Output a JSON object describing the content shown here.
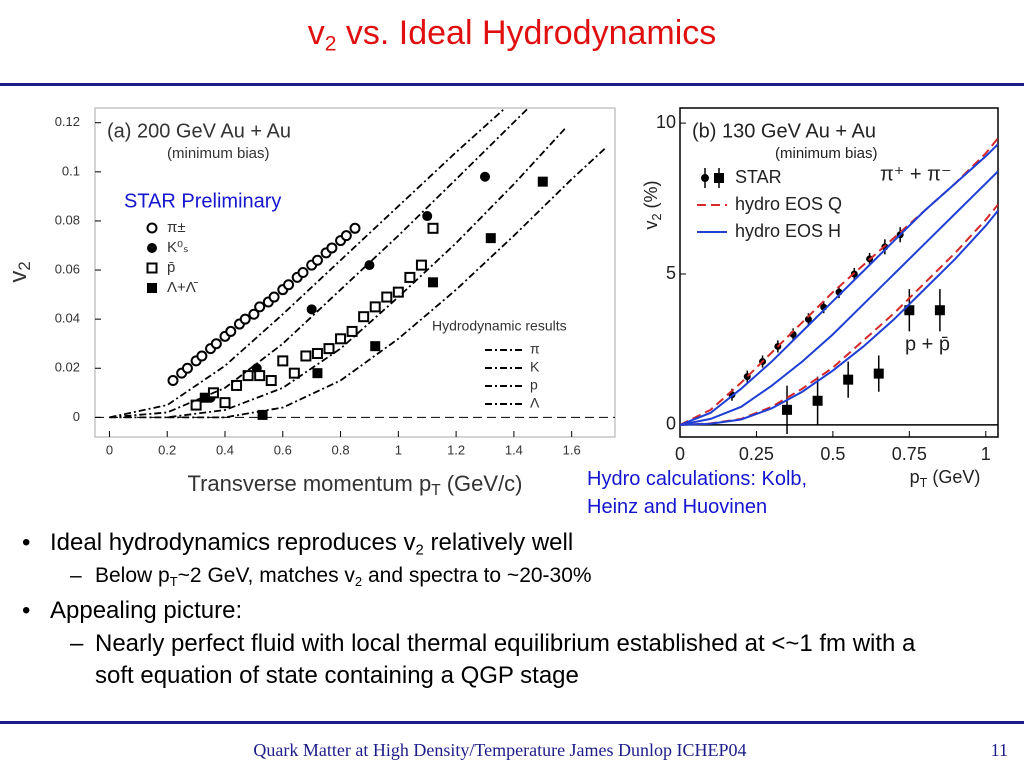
{
  "title": [
    "v",
    {
      "sub": "2"
    },
    " vs. Ideal Hydrodynamics"
  ],
  "chart_data": [
    {
      "type": "scatter",
      "title": "(a) 200 GeV Au + Au",
      "subtitle": "(minimum bias)",
      "xlabel": [
        "Transverse momentum p",
        {
          "sub": "T"
        },
        " (GeV/c)"
      ],
      "ylabel": [
        "v",
        {
          "sub": "2"
        }
      ],
      "xlim": [
        -0.05,
        1.75
      ],
      "ylim": [
        -0.008,
        0.126
      ],
      "xticks": [
        0,
        0.2,
        0.4,
        0.6,
        0.8,
        1,
        1.2,
        1.4,
        1.6
      ],
      "yticks": [
        0,
        0.02,
        0.04,
        0.06,
        0.08,
        0.1,
        0.12
      ],
      "zero_line": "dashed",
      "line_legend_title": "Hydrodynamic results",
      "series": [
        {
          "name": "π±",
          "marker": "circle-open",
          "color": "#000000",
          "x": [
            0.22,
            0.25,
            0.27,
            0.3,
            0.32,
            0.35,
            0.37,
            0.4,
            0.42,
            0.45,
            0.47,
            0.5,
            0.52,
            0.55,
            0.57,
            0.6,
            0.62,
            0.65,
            0.67,
            0.7,
            0.72,
            0.75,
            0.77,
            0.8,
            0.82,
            0.85
          ],
          "values": [
            0.015,
            0.018,
            0.02,
            0.023,
            0.025,
            0.028,
            0.03,
            0.033,
            0.035,
            0.038,
            0.04,
            0.042,
            0.045,
            0.047,
            0.049,
            0.052,
            0.054,
            0.057,
            0.059,
            0.062,
            0.064,
            0.067,
            0.069,
            0.072,
            0.074,
            0.077
          ]
        },
        {
          "name": "K⁰ₛ",
          "marker": "circle",
          "color": "#000000",
          "x": [
            0.35,
            0.51,
            0.7,
            0.9,
            1.1,
            1.3
          ],
          "values": [
            0.008,
            0.02,
            0.044,
            0.062,
            0.082,
            0.098
          ]
        },
        {
          "name": "p̄",
          "marker": "square-open",
          "color": "#000000",
          "x": [
            0.3,
            0.36,
            0.4,
            0.44,
            0.48,
            0.52,
            0.56,
            0.6,
            0.64,
            0.68,
            0.72,
            0.76,
            0.8,
            0.84,
            0.88,
            0.92,
            0.96,
            1.0,
            1.04,
            1.08,
            1.12
          ],
          "values": [
            0.005,
            0.01,
            0.006,
            0.013,
            0.017,
            0.017,
            0.015,
            0.023,
            0.018,
            0.025,
            0.026,
            0.028,
            0.032,
            0.035,
            0.041,
            0.045,
            0.049,
            0.051,
            0.057,
            0.062,
            0.077
          ]
        },
        {
          "name": "Λ+Λ̄",
          "marker": "square",
          "color": "#000000",
          "x": [
            0.33,
            0.53,
            0.72,
            0.92,
            1.12,
            1.32,
            1.5
          ],
          "values": [
            0.008,
            0.001,
            0.018,
            0.029,
            0.055,
            0.073,
            0.096
          ]
        },
        {
          "name": "π",
          "line": true,
          "dash": "dashdot",
          "color": "#000000",
          "x": [
            0,
            0.2,
            0.4,
            0.6,
            0.8,
            1.0,
            1.2,
            1.37
          ],
          "values": [
            0,
            0.005,
            0.021,
            0.042,
            0.064,
            0.086,
            0.108,
            0.126
          ]
        },
        {
          "name": "K",
          "line": true,
          "dash": "dashdot",
          "color": "#000000",
          "x": [
            0,
            0.2,
            0.4,
            0.6,
            0.8,
            1.0,
            1.2,
            1.45
          ],
          "values": [
            0,
            0.002,
            0.012,
            0.03,
            0.052,
            0.074,
            0.097,
            0.126
          ]
        },
        {
          "name": "p",
          "line": true,
          "dash": "dashdot",
          "color": "#000000",
          "x": [
            0,
            0.2,
            0.4,
            0.6,
            0.8,
            1.0,
            1.2,
            1.4,
            1.58
          ],
          "values": [
            0,
            0,
            0.003,
            0.012,
            0.028,
            0.049,
            0.071,
            0.095,
            0.118
          ]
        },
        {
          "name": "Λ",
          "line": true,
          "dash": "dashdot",
          "color": "#000000",
          "x": [
            0.2,
            0.4,
            0.6,
            0.8,
            1.0,
            1.2,
            1.4,
            1.6,
            1.72
          ],
          "values": [
            0,
            0,
            0.004,
            0.015,
            0.032,
            0.052,
            0.074,
            0.097,
            0.11
          ]
        }
      ]
    },
    {
      "type": "scatter",
      "title": "(b) 130 GeV Au + Au",
      "subtitle": "(minimum bias)",
      "xlabel": [
        "p",
        {
          "sub": "T"
        },
        " (GeV)"
      ],
      "ylabel": [
        "v",
        {
          "sub": "2"
        },
        " (%)"
      ],
      "xlim": [
        0,
        1.04
      ],
      "ylim": [
        -0.4,
        10.5
      ],
      "xticks": [
        0,
        0.25,
        0.5,
        0.75,
        1
      ],
      "yticks": [
        0,
        5,
        10
      ],
      "zero_line": "solid",
      "annotations": [
        "π⁺ + π⁻",
        "p + p̄"
      ],
      "series": [
        {
          "name": "STAR",
          "marker": "circle",
          "color": "#000000",
          "x": [
            0.17,
            0.22,
            0.27,
            0.32,
            0.37,
            0.42,
            0.47,
            0.52,
            0.57,
            0.62,
            0.67,
            0.72
          ],
          "values": [
            1.0,
            1.6,
            2.1,
            2.6,
            3.0,
            3.5,
            3.9,
            4.4,
            5.0,
            5.5,
            5.9,
            6.3
          ],
          "errors": [
            0.2,
            0.2,
            0.2,
            0.2,
            0.2,
            0.2,
            0.2,
            0.2,
            0.2,
            0.2,
            0.25,
            0.25
          ]
        },
        {
          "marker": "square",
          "color": "#000000",
          "x": [
            0.35,
            0.45,
            0.55,
            0.65,
            0.75,
            0.85
          ],
          "values": [
            0.5,
            0.8,
            1.5,
            1.7,
            3.8,
            3.8
          ],
          "errors": [
            0.8,
            0.8,
            0.6,
            0.6,
            0.7,
            0.7
          ]
        },
        {
          "name": "hydro EOS Q",
          "line": true,
          "dash": "dashed",
          "color": "#d42a2a",
          "x": [
            0,
            0.1,
            0.2,
            0.3,
            0.4,
            0.5,
            0.6,
            0.7,
            0.8,
            0.9,
            1.0,
            1.04
          ],
          "values": [
            0,
            0.5,
            1.4,
            2.4,
            3.4,
            4.4,
            5.3,
            6.2,
            7.1,
            8.0,
            9.0,
            9.5
          ]
        },
        {
          "name": "hydro EOS H",
          "line": true,
          "dash": "solid",
          "color": "#1f3fd4",
          "x": [
            0,
            0.1,
            0.2,
            0.3,
            0.4,
            0.5,
            0.6,
            0.7,
            0.8,
            0.9,
            1.0,
            1.04
          ],
          "values": [
            0,
            0.4,
            1.2,
            2.1,
            3.1,
            4.1,
            5.1,
            6.1,
            7.1,
            8.0,
            8.9,
            9.3
          ]
        },
        {
          "line": true,
          "dash": "solid",
          "color": "#1f3fd4",
          "x": [
            0,
            0.1,
            0.2,
            0.3,
            0.4,
            0.5,
            0.6,
            0.7,
            0.8,
            0.9,
            1.0,
            1.04
          ],
          "values": [
            0,
            0.2,
            0.6,
            1.3,
            2.1,
            3.0,
            4.0,
            5.0,
            6.0,
            7.0,
            8.0,
            8.4
          ]
        },
        {
          "line": true,
          "dash": "dashed",
          "color": "#d42a2a",
          "x": [
            0,
            0.1,
            0.2,
            0.3,
            0.4,
            0.5,
            0.6,
            0.7,
            0.8,
            0.9,
            1.0,
            1.04
          ],
          "values": [
            0,
            0.05,
            0.2,
            0.6,
            1.2,
            1.9,
            2.8,
            3.7,
            4.7,
            5.7,
            6.8,
            7.3
          ]
        },
        {
          "line": true,
          "dash": "solid",
          "color": "#1f3fd4",
          "x": [
            0,
            0.1,
            0.2,
            0.3,
            0.4,
            0.5,
            0.6,
            0.7,
            0.8,
            0.9,
            1.0,
            1.04
          ],
          "values": [
            0,
            0.04,
            0.18,
            0.55,
            1.1,
            1.8,
            2.6,
            3.5,
            4.5,
            5.5,
            6.6,
            7.1
          ]
        }
      ]
    }
  ],
  "star_preliminary": "STAR Preliminary",
  "hydro_credit": [
    "Hydro calculations: Kolb,",
    "Heinz and Huovinen"
  ],
  "bullets": [
    {
      "level": 1,
      "text": [
        "Ideal hydrodynamics reproduces v",
        {
          "sub": "2"
        },
        " relatively well"
      ]
    },
    {
      "level": 2,
      "text": [
        "Below p",
        {
          "sub": "T"
        },
        "~2 GeV, matches v",
        {
          "sub": "2"
        },
        " and spectra to ~20-30%"
      ]
    },
    {
      "level": 1,
      "text": [
        "Appealing picture:"
      ]
    },
    {
      "level": 2,
      "text": [
        "Nearly perfect fluid with local thermal equilibrium established at <~1 fm with a soft equation of state containing a QGP stage"
      ]
    }
  ],
  "footer": {
    "text": "Quark Matter at High Density/Temperature James Dunlop ICHEP04",
    "page": "11"
  }
}
